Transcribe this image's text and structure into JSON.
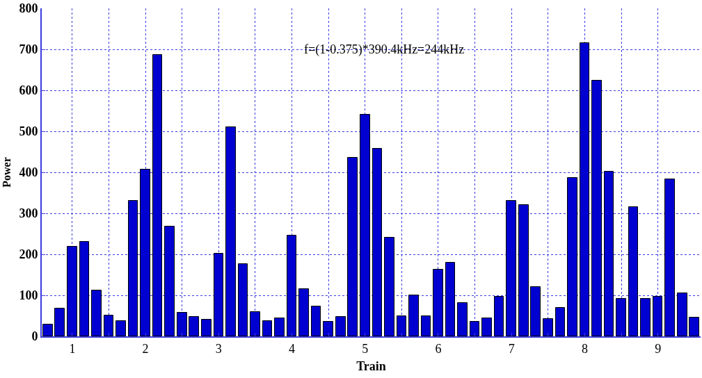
{
  "chart_data": {
    "type": "bar",
    "xlabel": "Train",
    "ylabel": "Power",
    "x": [
      0.667,
      0.833,
      1,
      1.167,
      1.333,
      1.5,
      1.667,
      1.833,
      2,
      2.167,
      2.333,
      2.5,
      2.667,
      2.833,
      3,
      3.167,
      3.333,
      3.5,
      3.667,
      3.833,
      4,
      4.167,
      4.333,
      4.5,
      4.667,
      4.833,
      5,
      5.167,
      5.333,
      5.5,
      5.667,
      5.833,
      6,
      6.167,
      6.333,
      6.5,
      6.667,
      6.833,
      7,
      7.167,
      7.333,
      7.5,
      7.667,
      7.833,
      8,
      8.167,
      8.333,
      8.5,
      8.667,
      8.833,
      9,
      9.167,
      9.333,
      9.5
    ],
    "values": [
      28,
      67,
      218,
      231,
      112,
      51,
      38,
      331,
      407,
      687,
      267,
      58,
      48,
      40,
      202,
      511,
      176,
      60,
      38,
      44,
      246,
      116,
      73,
      36,
      48,
      435,
      540,
      458,
      240,
      49,
      100,
      49,
      163,
      180,
      82,
      36,
      44,
      96,
      331,
      320,
      120,
      42,
      69,
      387,
      715,
      623,
      402,
      91,
      316,
      92,
      96,
      383,
      105,
      45
    ],
    "color": "#0000d0",
    "xlim": [
      0.583,
      9.583
    ],
    "xticks": [
      1,
      {
        "value": 1.5,
        "label": null
      },
      2,
      {
        "value": 2.5,
        "label": null
      },
      3,
      {
        "value": 3.5,
        "label": null
      },
      4,
      {
        "value": 4.5,
        "label": null
      },
      5,
      {
        "value": 5.5,
        "label": null
      },
      6,
      {
        "value": 6.5,
        "label": null
      },
      7,
      {
        "value": 7.5,
        "label": null
      },
      8,
      {
        "value": 8.5,
        "label": null
      },
      9
    ],
    "ylim": [
      0,
      800
    ],
    "yticks": [
      0,
      100,
      200,
      300,
      400,
      500,
      600,
      700,
      800
    ],
    "grid": true,
    "annotations": [
      "f=(1-0.375)*390.4kHz=244kHz"
    ]
  }
}
